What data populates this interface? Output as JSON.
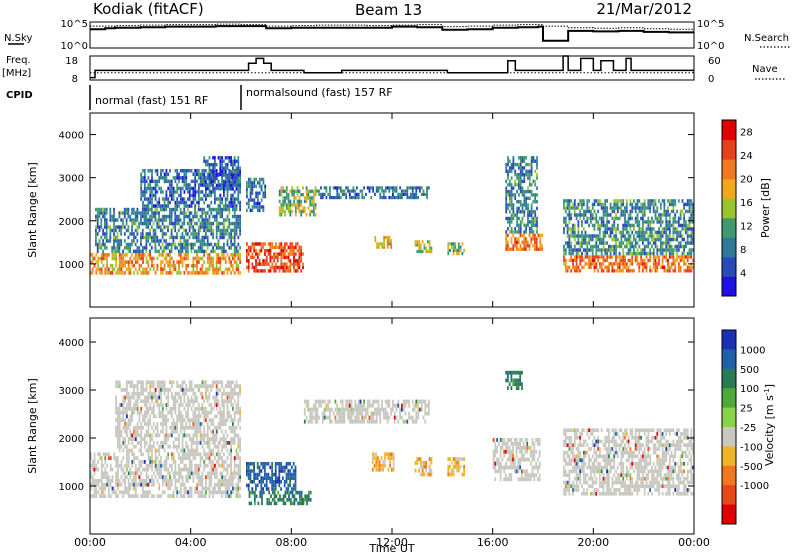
{
  "header": {
    "station": "Kodiak (fitACF)",
    "beam": "Beam 13",
    "date": "21/Mar/2012"
  },
  "left_labels": {
    "nsky": "N.Sky",
    "freq": "Freq.",
    "mhz": "[MHz]",
    "cpid": "CPID"
  },
  "right_labels": {
    "nsearch": "N.Search",
    "nave": "Nave"
  },
  "noise_panel": {
    "tick_top": "10^5",
    "tick_bottom": "10^0"
  },
  "freq_panel": {
    "yticks": [
      "18",
      "8"
    ],
    "right_yticks": [
      "60",
      "0"
    ]
  },
  "cpid": {
    "segment1": "normal (fast) 151 RF",
    "segment2": "normalsound (fast) 157 RF"
  },
  "panels": {
    "power": {
      "ylabel": "Slant Range [km]",
      "cbar_label": "Power [dB]"
    },
    "velocity": {
      "ylabel": "Slant Range [km]",
      "cbar_label": "Velocity [m s",
      "cbar_label_sup": "-1",
      "cbar_label_end": "]"
    },
    "xlabel": "Time UT"
  },
  "colors": {
    "power_scale": [
      "#1e10e8",
      "#2a4ab8",
      "#2e7a9a",
      "#3f9a6e",
      "#9ac42e",
      "#f0a81a",
      "#f0781e",
      "#e8401a",
      "#e00000"
    ],
    "velocity_scale": [
      "#1c2fb4",
      "#2060a8",
      "#2a7a58",
      "#4ea83a",
      "#8ad24a",
      "#c8c8c0",
      "#f0b428",
      "#f07820",
      "#e84818",
      "#e00000"
    ],
    "ground": "#c8c8c0"
  },
  "chart_data": [
    {
      "type": "line",
      "name": "noise",
      "x_range_hours": [
        0,
        24
      ],
      "series": [
        {
          "name": "N.Sky",
          "x": [
            0,
            0.6,
            1,
            2,
            3,
            4,
            5,
            6,
            7,
            8,
            9,
            10,
            11,
            12,
            13,
            14,
            15,
            16,
            17,
            17.8,
            18,
            18.8,
            19,
            20,
            21,
            22,
            23,
            24
          ],
          "values": [
            3.6,
            3.8,
            3.9,
            4.0,
            4.1,
            4.1,
            4.2,
            4.2,
            3.8,
            3.9,
            3.9,
            3.9,
            3.9,
            4.1,
            4.0,
            3.5,
            3.6,
            3.9,
            4.0,
            4.1,
            1.4,
            1.4,
            3.3,
            3.2,
            3.3,
            3.1,
            3.0,
            3.0
          ]
        },
        {
          "name": "N.Search",
          "x": [
            0,
            1,
            2,
            3,
            4,
            5,
            6,
            7,
            8,
            9,
            10,
            11,
            12,
            13,
            14,
            15,
            16,
            17,
            17.8,
            18,
            19,
            20,
            21,
            22,
            23,
            24
          ],
          "values": [
            4.2,
            4.3,
            4.4,
            4.5,
            4.5,
            4.6,
            4.5,
            4.2,
            4.3,
            4.4,
            4.4,
            4.3,
            4.4,
            4.5,
            4.1,
            4.2,
            4.4,
            4.5,
            4.5,
            4.2,
            3.9,
            3.8,
            3.9,
            3.7,
            3.6,
            3.5
          ]
        }
      ],
      "ylim": [
        0,
        5
      ]
    },
    {
      "type": "line",
      "name": "frequency",
      "x_range_hours": [
        0,
        24
      ],
      "series": [
        {
          "name": "Freq.",
          "x": [
            0,
            0.2,
            6.0,
            6.3,
            6.6,
            6.9,
            7.2,
            8.0,
            8.5,
            10.0,
            12.5,
            14.0,
            14.2,
            16.3,
            16.6,
            16.9,
            18.5,
            18.8,
            19.0,
            19.5,
            20.0,
            20.3,
            20.8,
            21.3,
            21.5,
            24
          ],
          "values": [
            9,
            12,
            12,
            15,
            17,
            15,
            12,
            12,
            11,
            12,
            12,
            12,
            11,
            11,
            16,
            12,
            12,
            18,
            12,
            17,
            12,
            16,
            12,
            17,
            12,
            12
          ]
        },
        {
          "name": "Nave",
          "x": [
            0,
            24
          ],
          "values": [
            18,
            18
          ]
        }
      ],
      "ylim": [
        8,
        18
      ],
      "y2lim": [
        0,
        60
      ]
    },
    {
      "type": "heatmap",
      "name": "power",
      "x_range_hours": [
        0,
        24
      ],
      "ylim": [
        0,
        4500
      ],
      "yticks": [
        1000,
        2000,
        3000,
        4000
      ],
      "xticks": [
        "00:00",
        "04:00",
        "08:00",
        "12:00",
        "16:00",
        "20:00",
        "00:00"
      ],
      "cbar_ticks": [
        4,
        8,
        12,
        16,
        20,
        24,
        28
      ],
      "cbar_range": [
        0,
        30
      ],
      "regions": [
        {
          "t0": 0.0,
          "t1": 6.0,
          "r0": 750,
          "r1": 1250,
          "v": 20
        },
        {
          "t0": 0.2,
          "t1": 6.0,
          "r0": 1250,
          "r1": 2300,
          "v": 9
        },
        {
          "t0": 2.0,
          "t1": 6.0,
          "r0": 2300,
          "r1": 3200,
          "v": 7
        },
        {
          "t0": 4.5,
          "t1": 6.0,
          "r0": 2700,
          "r1": 3500,
          "v": 6
        },
        {
          "t0": 6.2,
          "t1": 8.5,
          "r0": 800,
          "r1": 1500,
          "v": 25
        },
        {
          "t0": 6.2,
          "t1": 7.0,
          "r0": 2200,
          "r1": 3000,
          "v": 8
        },
        {
          "t0": 7.5,
          "t1": 9.0,
          "r0": 2100,
          "r1": 2800,
          "v": 14
        },
        {
          "t0": 9.0,
          "t1": 13.5,
          "r0": 2500,
          "r1": 2800,
          "v": 8
        },
        {
          "t0": 11.3,
          "t1": 12.0,
          "r0": 1350,
          "r1": 1650,
          "v": 18
        },
        {
          "t0": 12.9,
          "t1": 13.6,
          "r0": 1250,
          "r1": 1550,
          "v": 14
        },
        {
          "t0": 14.2,
          "t1": 14.9,
          "r0": 1200,
          "r1": 1500,
          "v": 14
        },
        {
          "t0": 16.5,
          "t1": 18.0,
          "r0": 1300,
          "r1": 1700,
          "v": 22
        },
        {
          "t0": 16.5,
          "t1": 17.8,
          "r0": 1700,
          "r1": 3500,
          "v": 9
        },
        {
          "t0": 18.8,
          "t1": 24.0,
          "r0": 800,
          "r1": 1200,
          "v": 22
        },
        {
          "t0": 18.8,
          "t1": 24.0,
          "r0": 1200,
          "r1": 2500,
          "v": 10
        }
      ]
    },
    {
      "type": "heatmap",
      "name": "velocity",
      "x_range_hours": [
        0,
        24
      ],
      "ylim": [
        0,
        4500
      ],
      "yticks": [
        1000,
        2000,
        3000,
        4000
      ],
      "xticks": [
        "00:00",
        "04:00",
        "08:00",
        "12:00",
        "16:00",
        "20:00",
        "00:00"
      ],
      "cbar_ticks": [
        "1000",
        "500",
        "100",
        "25",
        "-25",
        "-100",
        "-500",
        "-1000"
      ],
      "regions": [
        {
          "t0": 0.0,
          "t1": 6.0,
          "r0": 750,
          "r1": 1700,
          "v": 0
        },
        {
          "t0": 1.0,
          "t1": 6.0,
          "r0": 1700,
          "r1": 3200,
          "v": 0
        },
        {
          "t0": 6.2,
          "t1": 8.2,
          "r0": 900,
          "r1": 1500,
          "v": 800
        },
        {
          "t0": 6.3,
          "t1": 8.8,
          "r0": 600,
          "r1": 900,
          "v": 120
        },
        {
          "t0": 8.5,
          "t1": 13.5,
          "r0": 2300,
          "r1": 2800,
          "v": 0
        },
        {
          "t0": 11.2,
          "t1": 12.1,
          "r0": 1300,
          "r1": 1700,
          "v": -200
        },
        {
          "t0": 12.9,
          "t1": 13.6,
          "r0": 1200,
          "r1": 1600,
          "v": -150
        },
        {
          "t0": 14.2,
          "t1": 14.9,
          "r0": 1200,
          "r1": 1600,
          "v": -300
        },
        {
          "t0": 16.0,
          "t1": 17.9,
          "r0": 1100,
          "r1": 2000,
          "v": 0
        },
        {
          "t0": 16.5,
          "t1": 17.2,
          "r0": 3000,
          "r1": 3400,
          "v": 150
        },
        {
          "t0": 18.8,
          "t1": 24.0,
          "r0": 800,
          "r1": 2200,
          "v": 0
        }
      ]
    }
  ]
}
